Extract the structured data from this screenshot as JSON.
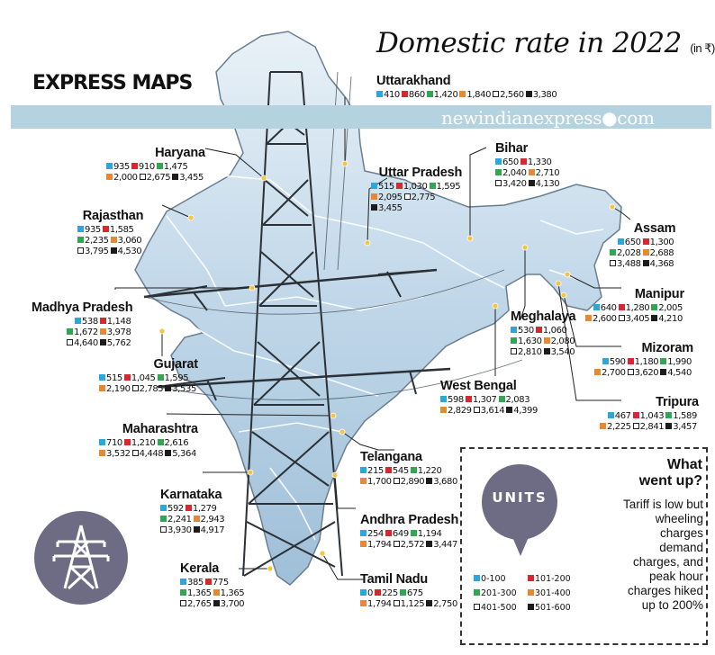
{
  "header": {
    "title": "Domestic rate in 2022",
    "title_unit": "(in ₹)",
    "brand": "EXPRESS MAPS",
    "website": "newindianexpress●com"
  },
  "swatch_colors": [
    "#2aa8d9",
    "#d72832",
    "#33a652",
    "#e58a33",
    "#ffffff",
    "#1c1c1c"
  ],
  "states": [
    {
      "name": "Uttarakhand",
      "values": [
        {
          "v": "410",
          "c": 0
        },
        {
          "v": "860",
          "c": 1
        },
        {
          "v": "1,420",
          "c": 2
        },
        {
          "v": "1,840",
          "c": 3
        },
        {
          "v": "2,560",
          "c": 4
        },
        {
          "v": "3,380",
          "c": 5
        }
      ]
    },
    {
      "name": "Haryana",
      "values": [
        {
          "v": "935",
          "c": 0
        },
        {
          "v": "910",
          "c": 1
        },
        {
          "v": "1,475",
          "c": 2
        },
        {
          "v": "2,000",
          "c": 3
        },
        {
          "v": "2,675",
          "c": 4
        },
        {
          "v": "3,455",
          "c": 5
        }
      ]
    },
    {
      "name": "Uttar Pradesh",
      "values": [
        {
          "v": "515",
          "c": 0
        },
        {
          "v": "1,030",
          "c": 1
        },
        {
          "v": "1,595",
          "c": 2
        },
        {
          "v": "2,095",
          "c": 3
        },
        {
          "v": "2,775",
          "c": 4
        },
        {
          "v": "3,455",
          "c": 5
        }
      ]
    },
    {
      "name": "Bihar",
      "values": [
        {
          "v": "650",
          "c": 0
        },
        {
          "v": "1,330",
          "c": 1
        },
        {
          "v": "2,040",
          "c": 2
        },
        {
          "v": "2,710",
          "c": 3
        },
        {
          "v": "3,420",
          "c": 4
        },
        {
          "v": "4,130",
          "c": 5
        }
      ]
    },
    {
      "name": "Rajasthan",
      "values": [
        {
          "v": "935",
          "c": 0
        },
        {
          "v": "1,585",
          "c": 1
        },
        {
          "v": "2,235",
          "c": 2
        },
        {
          "v": "3,060",
          "c": 3
        },
        {
          "v": "3,795",
          "c": 4
        },
        {
          "v": "4,530",
          "c": 5
        }
      ]
    },
    {
      "name": "Assam",
      "values": [
        {
          "v": "650",
          "c": 0
        },
        {
          "v": "1,300",
          "c": 1
        },
        {
          "v": "2,028",
          "c": 2
        },
        {
          "v": "2,688",
          "c": 3
        },
        {
          "v": "3,488",
          "c": 4
        },
        {
          "v": "4,368",
          "c": 5
        }
      ]
    },
    {
      "name": "Manipur",
      "values": [
        {
          "v": "640",
          "c": 0
        },
        {
          "v": "1,280",
          "c": 1
        },
        {
          "v": "2,005",
          "c": 2
        },
        {
          "v": "2,600",
          "c": 3
        },
        {
          "v": "3,405",
          "c": 4
        },
        {
          "v": "4,210",
          "c": 5
        }
      ]
    },
    {
      "name": "Madhya Pradesh",
      "values": [
        {
          "v": "538",
          "c": 0
        },
        {
          "v": "1,148",
          "c": 1
        },
        {
          "v": "1,672",
          "c": 2
        },
        {
          "v": "3,978",
          "c": 3
        },
        {
          "v": "4,640",
          "c": 4
        },
        {
          "v": "5,762",
          "c": 5
        }
      ]
    },
    {
      "name": "Meghalaya",
      "values": [
        {
          "v": "530",
          "c": 0
        },
        {
          "v": "1,060",
          "c": 1
        },
        {
          "v": "1,630",
          "c": 2
        },
        {
          "v": "2,080",
          "c": 3
        },
        {
          "v": "2,810",
          "c": 4
        },
        {
          "v": "3,540",
          "c": 5
        }
      ]
    },
    {
      "name": "Mizoram",
      "values": [
        {
          "v": "590",
          "c": 0
        },
        {
          "v": "1,180",
          "c": 1
        },
        {
          "v": "1,990",
          "c": 2
        },
        {
          "v": "2,700",
          "c": 3
        },
        {
          "v": "3,620",
          "c": 4
        },
        {
          "v": "4,540",
          "c": 5
        }
      ]
    },
    {
      "name": "Gujarat",
      "values": [
        {
          "v": "515",
          "c": 0
        },
        {
          "v": "1,045",
          "c": 1
        },
        {
          "v": "1,595",
          "c": 2
        },
        {
          "v": "2,190",
          "c": 3
        },
        {
          "v": "2,785",
          "c": 4
        },
        {
          "v": "3,535",
          "c": 5
        }
      ]
    },
    {
      "name": "West Bengal",
      "values": [
        {
          "v": "598",
          "c": 0
        },
        {
          "v": "1,307",
          "c": 1
        },
        {
          "v": "2,083",
          "c": 2
        },
        {
          "v": "2,829",
          "c": 3
        },
        {
          "v": "3,614",
          "c": 4
        },
        {
          "v": "4,399",
          "c": 5
        }
      ]
    },
    {
      "name": "Tripura",
      "values": [
        {
          "v": "467",
          "c": 0
        },
        {
          "v": "1,043",
          "c": 1
        },
        {
          "v": "1,589",
          "c": 2
        },
        {
          "v": "2,225",
          "c": 3
        },
        {
          "v": "2,841",
          "c": 4
        },
        {
          "v": "3,457",
          "c": 5
        }
      ]
    },
    {
      "name": "Maharashtra",
      "values": [
        {
          "v": "710",
          "c": 0
        },
        {
          "v": "1,210",
          "c": 1
        },
        {
          "v": "2,616",
          "c": 2
        },
        {
          "v": "3,532",
          "c": 3
        },
        {
          "v": "4,448",
          "c": 4
        },
        {
          "v": "5,364",
          "c": 5
        }
      ]
    },
    {
      "name": "Telangana",
      "values": [
        {
          "v": "215",
          "c": 0
        },
        {
          "v": "545",
          "c": 1
        },
        {
          "v": "1,220",
          "c": 2
        },
        {
          "v": "1,700",
          "c": 3
        },
        {
          "v": "2,890",
          "c": 4
        },
        {
          "v": "3,680",
          "c": 5
        }
      ]
    },
    {
      "name": "Karnataka",
      "values": [
        {
          "v": "592",
          "c": 0
        },
        {
          "v": "1,279",
          "c": 1
        },
        {
          "v": "2,241",
          "c": 2
        },
        {
          "v": "2,943",
          "c": 3
        },
        {
          "v": "3,930",
          "c": 4
        },
        {
          "v": "4,917",
          "c": 5
        }
      ]
    },
    {
      "name": "Andhra Pradesh",
      "values": [
        {
          "v": "254",
          "c": 0
        },
        {
          "v": "649",
          "c": 1
        },
        {
          "v": "1,194",
          "c": 2
        },
        {
          "v": "1,794",
          "c": 3
        },
        {
          "v": "2,572",
          "c": 4
        },
        {
          "v": "3,447",
          "c": 5
        }
      ]
    },
    {
      "name": "Kerala",
      "values": [
        {
          "v": "385",
          "c": 0
        },
        {
          "v": "775",
          "c": 1
        },
        {
          "v": "1,365",
          "c": 2
        },
        {
          "v": "1,365",
          "c": 3
        },
        {
          "v": "2,765",
          "c": 4
        },
        {
          "v": "3,700",
          "c": 5
        }
      ]
    },
    {
      "name": "Tamil Nadu",
      "values": [
        {
          "v": "0",
          "c": 0
        },
        {
          "v": "225",
          "c": 1
        },
        {
          "v": "675",
          "c": 2
        },
        {
          "v": "1,794",
          "c": 3
        },
        {
          "v": "1,125",
          "c": 4
        },
        {
          "v": "2,750",
          "c": 5
        }
      ]
    }
  ],
  "units": {
    "heading": "UNITS",
    "legend": [
      {
        "label": "0-100",
        "c": 0
      },
      {
        "label": "101-200",
        "c": 1
      },
      {
        "label": "201-300",
        "c": 2
      },
      {
        "label": "301-400",
        "c": 3
      },
      {
        "label": "401-500",
        "c": 4
      },
      {
        "label": "501-600",
        "c": 5
      }
    ]
  },
  "what_went_up": {
    "title_line1": "What",
    "title_line2": "went up?",
    "body": [
      "Tariff is low but",
      "wheeling",
      "charges",
      "demand",
      "charges, and",
      "peak hour",
      "charges hiked",
      "up to 200%"
    ]
  }
}
